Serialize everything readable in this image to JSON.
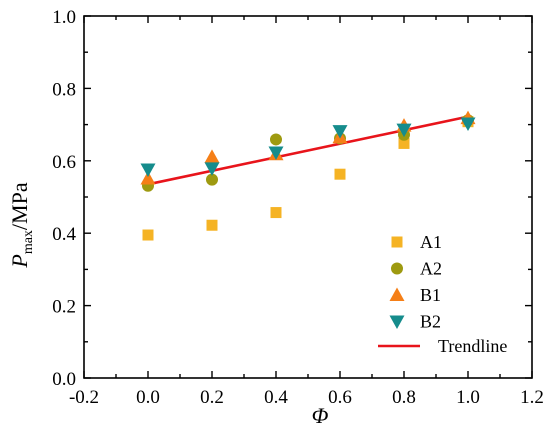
{
  "chart_data": {
    "type": "scatter",
    "title": "",
    "xlabel": "Φ",
    "ylabel": {
      "main": "P",
      "sub": "max",
      "unit": "/MPa"
    },
    "xlim": [
      -0.2,
      1.2
    ],
    "ylim": [
      0.0,
      1.0
    ],
    "x_ticks": [
      -0.2,
      0.0,
      0.2,
      0.4,
      0.6,
      0.8,
      1.0,
      1.2
    ],
    "y_ticks": [
      0.0,
      0.2,
      0.4,
      0.6,
      0.8,
      1.0
    ],
    "x_tick_labels": [
      "-0.2",
      "0.0",
      "0.2",
      "0.4",
      "0.6",
      "0.8",
      "1.0",
      "1.2"
    ],
    "y_tick_labels": [
      "0.0",
      "0.2",
      "0.4",
      "0.6",
      "0.8",
      "1.0"
    ],
    "grid": false,
    "legend_position": "bottom-right",
    "series": [
      {
        "name": "A1",
        "marker": "square",
        "color": "#F5B324",
        "points": [
          [
            0.0,
            0.395
          ],
          [
            0.2,
            0.422
          ],
          [
            0.4,
            0.457
          ],
          [
            0.6,
            0.563
          ],
          [
            0.8,
            0.648
          ],
          [
            1.0,
            0.708
          ]
        ]
      },
      {
        "name": "A2",
        "marker": "circle",
        "color": "#9E9A10",
        "points": [
          [
            0.0,
            0.531
          ],
          [
            0.2,
            0.548
          ],
          [
            0.4,
            0.659
          ],
          [
            0.6,
            0.662
          ],
          [
            0.8,
            0.672
          ],
          [
            1.0,
            0.712
          ]
        ]
      },
      {
        "name": "B1",
        "marker": "triangle-up",
        "color": "#F57F17",
        "points": [
          [
            0.0,
            0.551
          ],
          [
            0.2,
            0.611
          ],
          [
            0.4,
            0.618
          ],
          [
            0.6,
            0.665
          ],
          [
            0.8,
            0.697
          ],
          [
            1.0,
            0.718
          ]
        ]
      },
      {
        "name": "B2",
        "marker": "triangle-down",
        "color": "#158C8C",
        "points": [
          [
            0.0,
            0.576
          ],
          [
            0.2,
            0.579
          ],
          [
            0.4,
            0.623
          ],
          [
            0.6,
            0.682
          ],
          [
            0.8,
            0.686
          ],
          [
            1.0,
            0.703
          ]
        ]
      }
    ],
    "trendline": {
      "name": "Trendline",
      "color": "#E8141B",
      "x": [
        0.0,
        1.0
      ],
      "y": [
        0.535,
        0.722
      ]
    }
  }
}
